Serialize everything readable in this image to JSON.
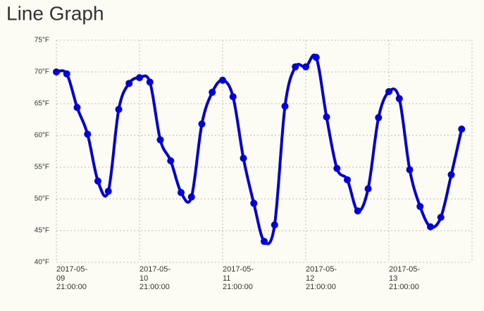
{
  "chart_data": {
    "type": "line",
    "title": "Line Graph",
    "x": [
      "2017-05-09 21:00:00",
      "2017-05-10 00:00:00",
      "2017-05-10 03:00:00",
      "2017-05-10 06:00:00",
      "2017-05-10 09:00:00",
      "2017-05-10 12:00:00",
      "2017-05-10 15:00:00",
      "2017-05-10 18:00:00",
      "2017-05-10 21:00:00",
      "2017-05-11 00:00:00",
      "2017-05-11 03:00:00",
      "2017-05-11 06:00:00",
      "2017-05-11 09:00:00",
      "2017-05-11 12:00:00",
      "2017-05-11 15:00:00",
      "2017-05-11 18:00:00",
      "2017-05-11 21:00:00",
      "2017-05-12 00:00:00",
      "2017-05-12 03:00:00",
      "2017-05-12 06:00:00",
      "2017-05-12 09:00:00",
      "2017-05-12 12:00:00",
      "2017-05-12 15:00:00",
      "2017-05-12 18:00:00",
      "2017-05-12 21:00:00",
      "2017-05-13 00:00:00",
      "2017-05-13 03:00:00",
      "2017-05-13 06:00:00",
      "2017-05-13 09:00:00",
      "2017-05-13 12:00:00",
      "2017-05-13 15:00:00",
      "2017-05-13 18:00:00",
      "2017-05-13 21:00:00",
      "2017-05-14 00:00:00",
      "2017-05-14 03:00:00",
      "2017-05-14 06:00:00",
      "2017-05-14 09:00:00",
      "2017-05-14 12:00:00",
      "2017-05-14 15:00:00",
      "2017-05-14 18:00:00"
    ],
    "series": [
      {
        "color": "#0000e6",
        "values": [
          70.0,
          69.7,
          64.4,
          60.2,
          52.8,
          51.2,
          64.1,
          68.2,
          69.1,
          68.4,
          59.3,
          56.0,
          51.0,
          50.3,
          61.8,
          66.8,
          68.7,
          66.1,
          56.4,
          49.3,
          43.3,
          45.9,
          64.6,
          70.8,
          70.8,
          72.3,
          62.9,
          54.8,
          53.0,
          48.1,
          51.6,
          62.8,
          66.9,
          65.8,
          54.6,
          48.8,
          45.6,
          47.1,
          53.8,
          61.0
        ]
      }
    ],
    "xlim": [
      "2017-05-09 21:00:00",
      "2017-05-14 21:00:00"
    ],
    "xticks": [
      "2017-05-09 21:00:00",
      "2017-05-10 21:00:00",
      "2017-05-11 21:00:00",
      "2017-05-12 21:00:00",
      "2017-05-13 21:00:00"
    ],
    "ylim": [
      40,
      75
    ],
    "yticks": [
      {
        "value": 40,
        "label": "40°F"
      },
      {
        "value": 45,
        "label": "45°F"
      },
      {
        "value": 50,
        "label": "50°F"
      },
      {
        "value": 55,
        "label": "55°F"
      },
      {
        "value": 60,
        "label": "60°F"
      },
      {
        "value": 65,
        "label": "65°F"
      },
      {
        "value": 70,
        "label": "70°F"
      },
      {
        "value": 75,
        "label": "75°F"
      }
    ],
    "grid": true
  }
}
